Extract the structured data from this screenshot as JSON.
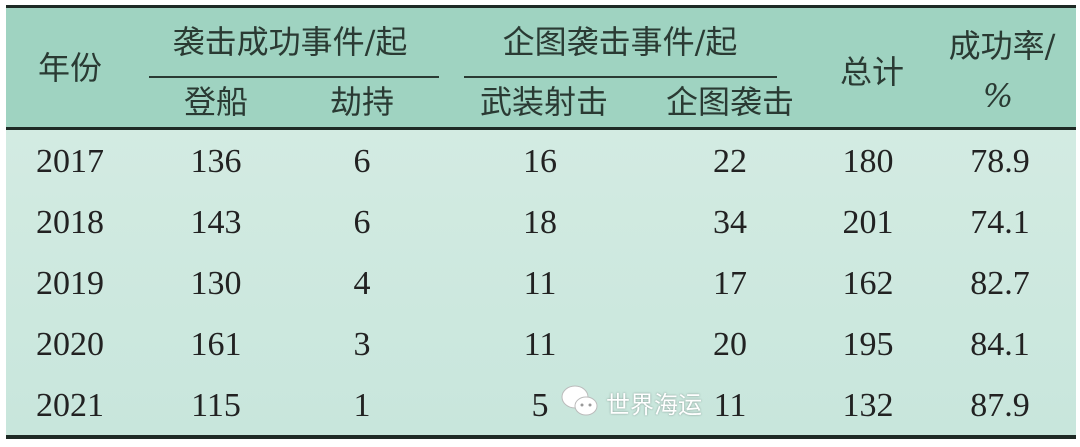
{
  "table": {
    "headers": {
      "year": "年份",
      "group_success": "袭击成功事件/起",
      "group_attempt": "企图袭击事件/起",
      "boarding": "登船",
      "hijack": "劫持",
      "armed_fire": "武装射击",
      "attempted": "企图袭击",
      "total": "总计",
      "rate_line1": "成功率/",
      "rate_line2": "%"
    },
    "rows": [
      [
        "2017",
        "136",
        "6",
        "16",
        "22",
        "180",
        "78.9"
      ],
      [
        "2018",
        "143",
        "6",
        "18",
        "34",
        "201",
        "74.1"
      ],
      [
        "2019",
        "130",
        "4",
        "11",
        "17",
        "162",
        "82.7"
      ],
      [
        "2020",
        "161",
        "3",
        "11",
        "20",
        "195",
        "84.1"
      ],
      [
        "2021",
        "115",
        "1",
        "5",
        "11",
        "132",
        "87.9"
      ]
    ],
    "colors": {
      "header_bg": "#9fd3c1",
      "body_bg": "#cfe8df",
      "rule": "#1e2a25"
    }
  },
  "watermark": {
    "text": "世界海运",
    "icon": "wechat-icon"
  }
}
